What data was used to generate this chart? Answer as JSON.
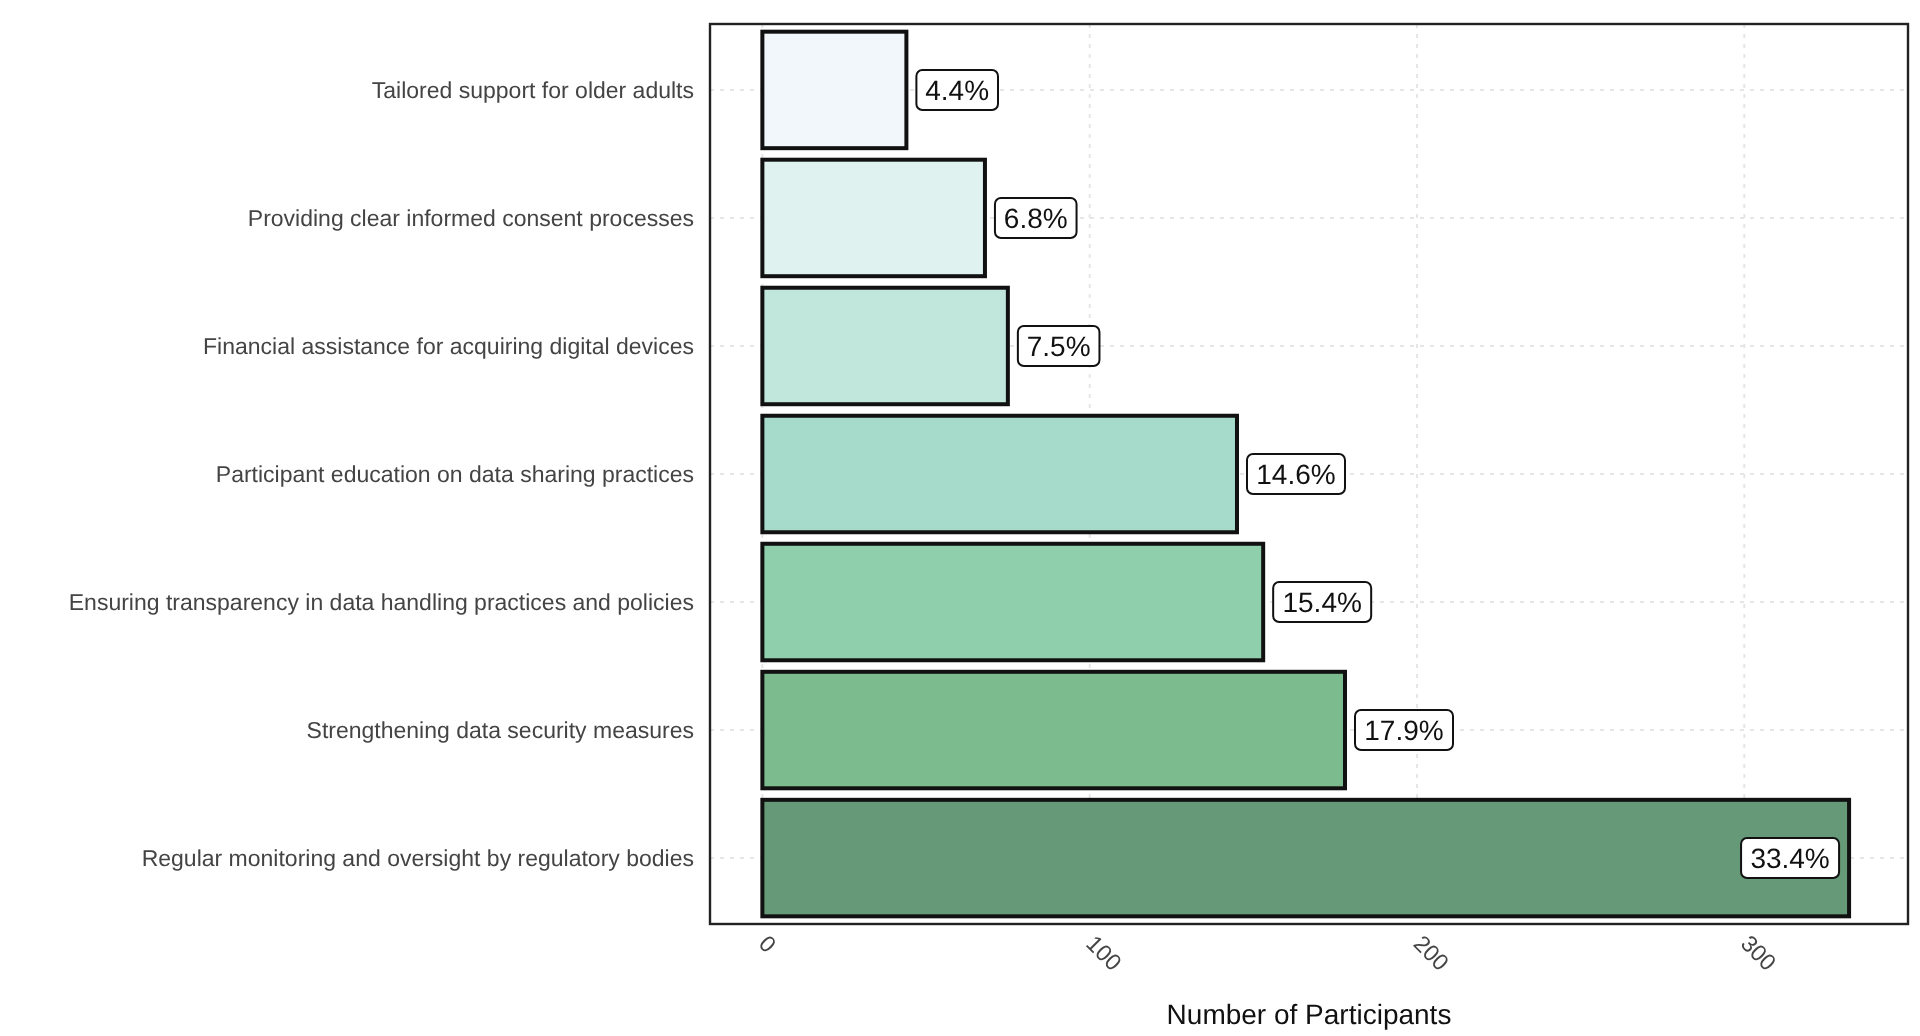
{
  "chart_data": {
    "type": "bar",
    "orientation": "horizontal",
    "xlabel": "Number of Participants",
    "categories": [
      "Tailored support for older adults",
      "Providing clear informed consent processes",
      "Financial assistance for acquiring digital devices",
      "Participant education on data sharing practices",
      "Ensuring transparency in data handling practices and policies",
      "Strengthening data security measures",
      "Regular monitoring and oversight by regulatory bodies"
    ],
    "values": [
      44,
      68,
      75,
      145,
      153,
      178,
      332
    ],
    "colors": [
      "#f1f7fa",
      "#dff2f0",
      "#c1e7dc",
      "#a6dbcb",
      "#8fcfab",
      "#7bbb8e",
      "#669977"
    ],
    "annotations": [
      {
        "text": "4.4%",
        "x": 44,
        "y": "Tailored support for older adults"
      },
      {
        "text": "6.8%",
        "x": 68,
        "y": "Providing clear informed consent processes"
      },
      {
        "text": "7.5%",
        "x": 75,
        "y": "Financial assistance for acquiring digital devices"
      },
      {
        "text": "14.6%",
        "x": 145,
        "y": "Participant education on data sharing practices"
      },
      {
        "text": "15.4%",
        "x": 153,
        "y": "Ensuring transparency in data handling practices and policies"
      },
      {
        "text": "17.9%",
        "x": 178,
        "y": "Strengthening data security measures"
      },
      {
        "text": "33.4%",
        "x": 332,
        "y": "Regular monitoring and oversight by regulatory bodies"
      }
    ],
    "xlim": [
      -16,
      350
    ],
    "xticks": [
      0,
      100,
      200,
      300
    ],
    "grid": true
  }
}
